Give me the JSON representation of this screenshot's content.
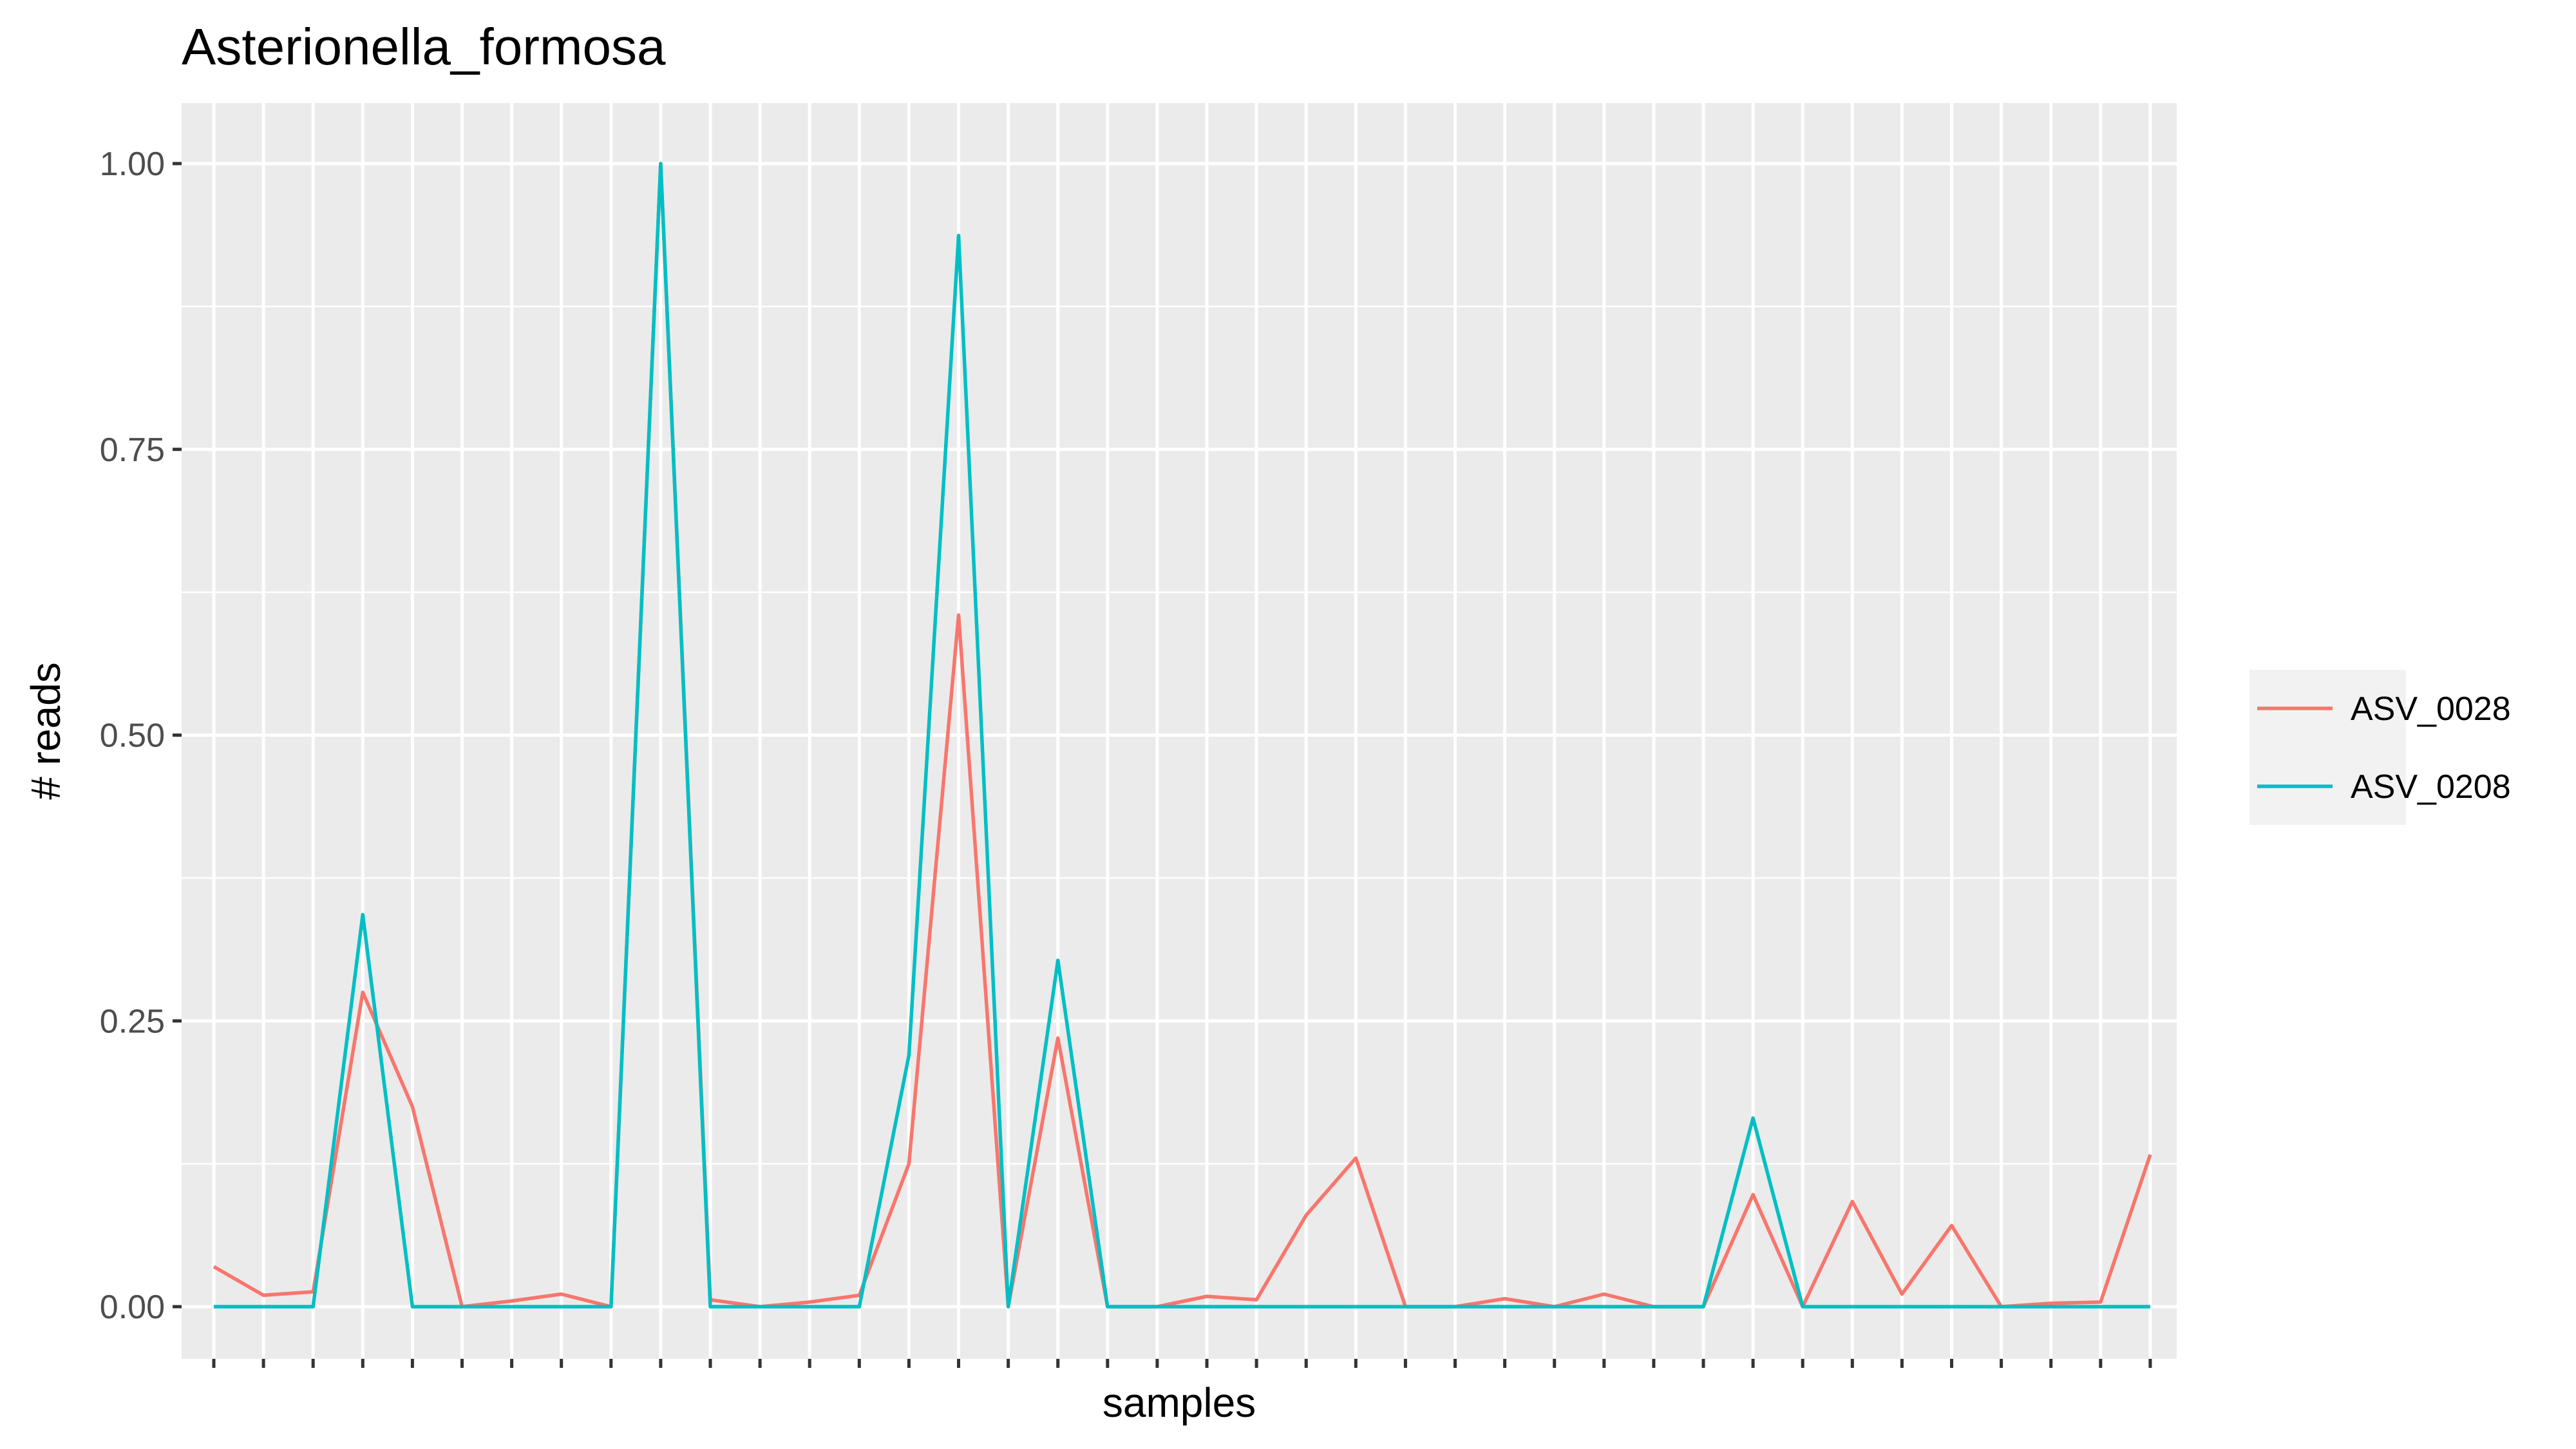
{
  "chart_data": {
    "type": "line",
    "title": "Asterionella_formosa",
    "xlabel": "samples",
    "ylabel": "# reads",
    "ylim": [
      -0.04,
      1.045
    ],
    "y_ticks": [
      0.0,
      0.25,
      0.5,
      0.75,
      1.0
    ],
    "y_tick_labels": [
      "0.00",
      "0.25",
      "0.50",
      "0.75",
      "1.00"
    ],
    "grid": true,
    "legend_position": "right",
    "n_samples": 40,
    "series": [
      {
        "name": "ASV_0028",
        "color": "#F8766D",
        "values": [
          0.035,
          0.01,
          0.013,
          0.275,
          0.175,
          0.0,
          0.005,
          0.011,
          0.0,
          1.0,
          0.006,
          0.0,
          0.004,
          0.01,
          0.125,
          0.605,
          0.0,
          0.235,
          0.0,
          0.0,
          0.009,
          0.006,
          0.08,
          0.13,
          0.0,
          0.0,
          0.007,
          0.0,
          0.011,
          0.0,
          0.0,
          0.098,
          0.0,
          0.092,
          0.011,
          0.071,
          0.0,
          0.003,
          0.004,
          0.133
        ]
      },
      {
        "name": "ASV_0208",
        "color": "#00BFC4",
        "values": [
          0.0,
          0.0,
          0.0,
          0.343,
          0.0,
          0.0,
          0.0,
          0.0,
          0.0,
          1.0,
          0.0,
          0.0,
          0.0,
          0.0,
          0.22,
          0.937,
          0.0,
          0.303,
          0.0,
          0.0,
          0.0,
          0.0,
          0.0,
          0.0,
          0.0,
          0.0,
          0.0,
          0.0,
          0.0,
          0.0,
          0.0,
          0.165,
          0.0,
          0.0,
          0.0,
          0.0,
          0.0,
          0.0,
          0.0,
          0.0
        ]
      }
    ]
  }
}
